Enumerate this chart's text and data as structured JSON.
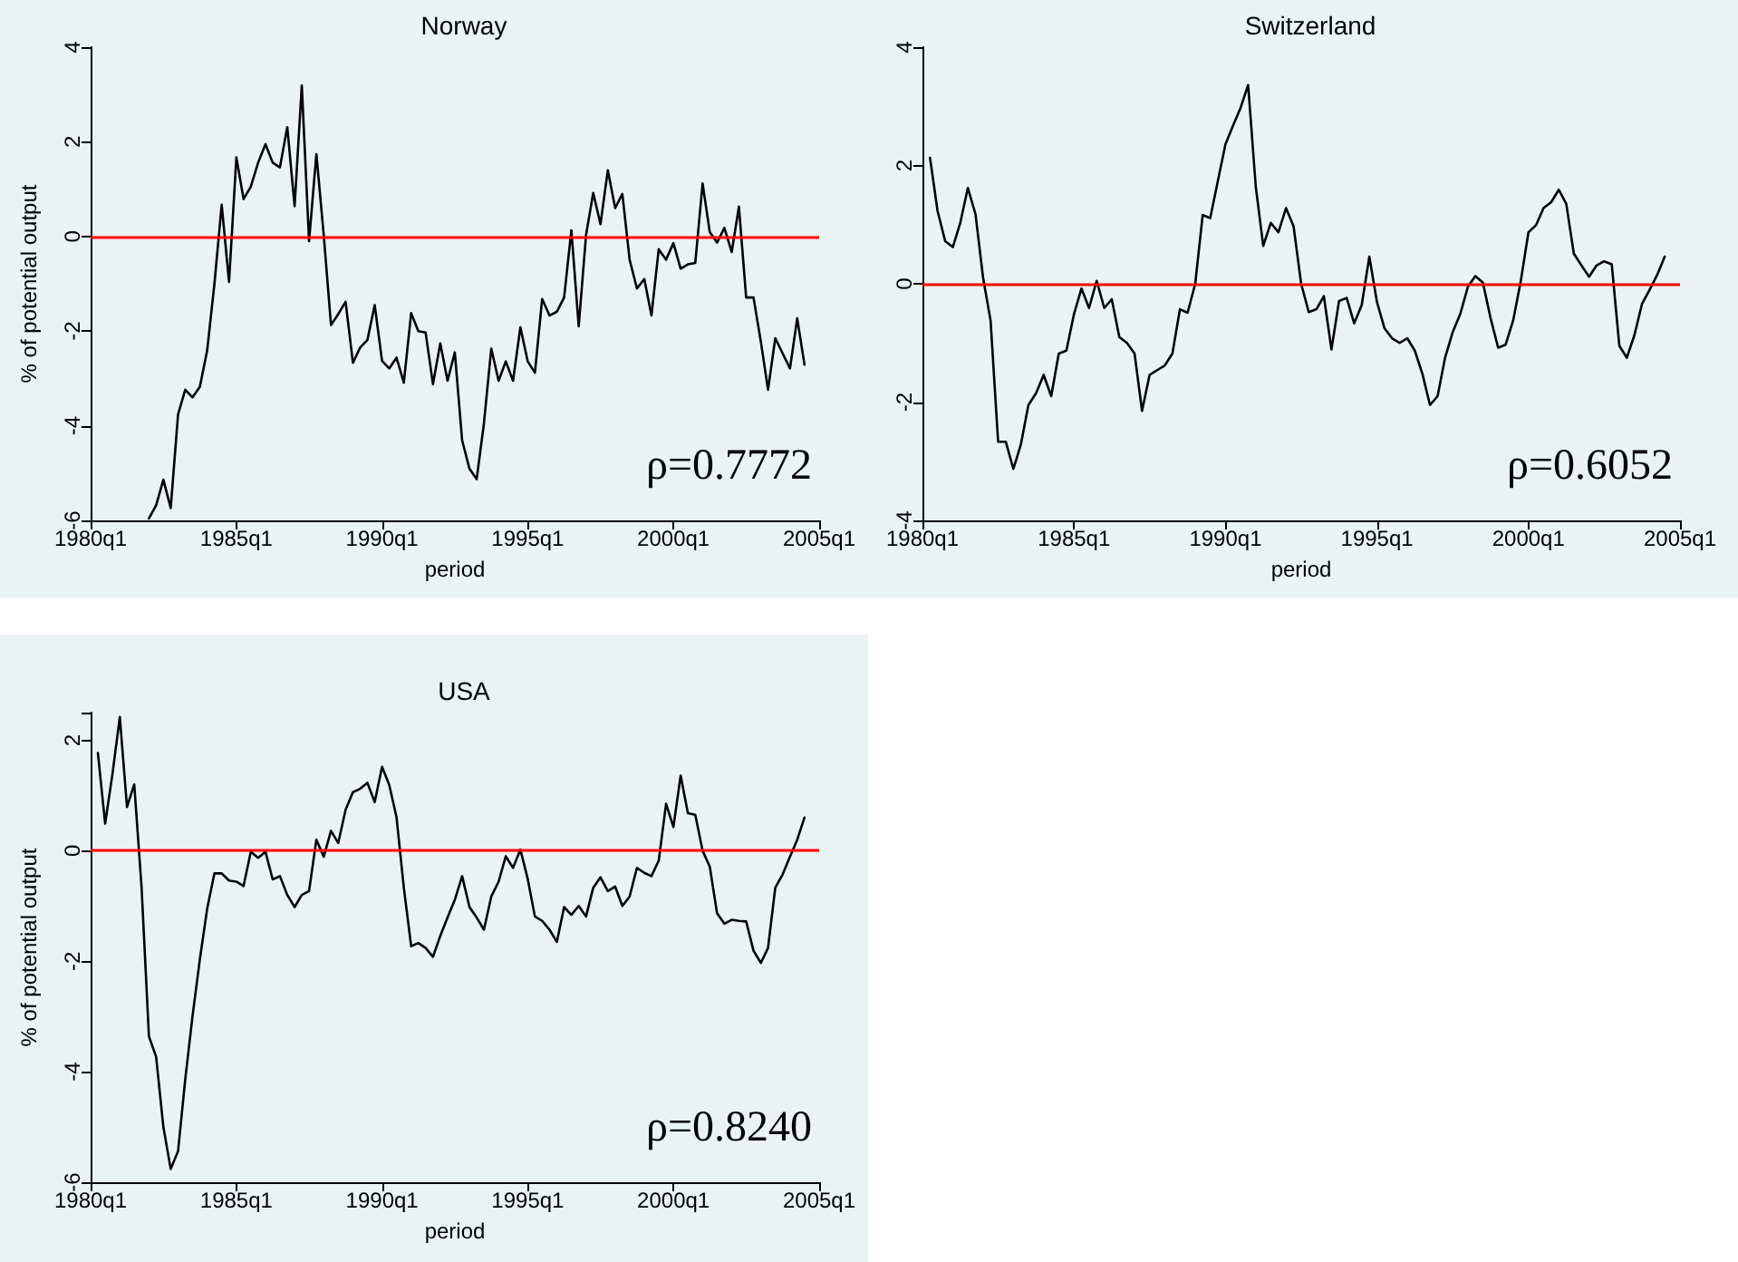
{
  "chart_data": [
    {
      "type": "line",
      "title": "Norway",
      "xlabel": "period",
      "ylabel": "% of potential output",
      "grid": false,
      "marker": "none",
      "line_style": "solid",
      "xlim": [
        "1980-01",
        "2005-01"
      ],
      "xticks": [
        {
          "value": "1980-01",
          "label": "1980q1"
        },
        {
          "value": "1985-01",
          "label": "1985q1"
        },
        {
          "value": "1990-01",
          "label": "1990q1"
        },
        {
          "value": "1995-01",
          "label": "1995q1"
        },
        {
          "value": "2000-01",
          "label": "2000q1"
        },
        {
          "value": "2005-01",
          "label": "2005q1"
        }
      ],
      "ylim": [
        -6,
        4
      ],
      "yticks": [
        -6,
        -4,
        -2,
        0,
        2,
        4
      ],
      "x": [
        "1982-01",
        "1982-04",
        "1982-07",
        "1982-10",
        "1983-01",
        "1983-04",
        "1983-07",
        "1983-10",
        "1984-01",
        "1984-04",
        "1984-07",
        "1984-10",
        "1985-01",
        "1985-04",
        "1985-07",
        "1985-10",
        "1986-01",
        "1986-04",
        "1986-07",
        "1986-10",
        "1987-01",
        "1987-04",
        "1987-07",
        "1987-10",
        "1988-01",
        "1988-04",
        "1988-07",
        "1988-10",
        "1989-01",
        "1989-04",
        "1989-07",
        "1989-10",
        "1990-01",
        "1990-04",
        "1990-07",
        "1990-10",
        "1991-01",
        "1991-04",
        "1991-07",
        "1991-10",
        "1992-01",
        "1992-04",
        "1992-07",
        "1992-10",
        "1993-01",
        "1993-04",
        "1993-07",
        "1993-10",
        "1994-01",
        "1994-04",
        "1994-07",
        "1994-10",
        "1995-01",
        "1995-04",
        "1995-07",
        "1995-10",
        "1996-01",
        "1996-04",
        "1996-07",
        "1996-10",
        "1997-01",
        "1997-04",
        "1997-07",
        "1997-10",
        "1998-01",
        "1998-04",
        "1998-07",
        "1998-10",
        "1999-01",
        "1999-04",
        "1999-07",
        "1999-10",
        "2000-01",
        "2000-04",
        "2000-07",
        "2000-10",
        "2001-01",
        "2001-04",
        "2001-07",
        "2001-10",
        "2002-01",
        "2002-04",
        "2002-07",
        "2002-10",
        "2003-01",
        "2003-04",
        "2003-07",
        "2003-10",
        "2004-01",
        "2004-04",
        "2004-07"
      ],
      "series": [
        {
          "color": "#000000",
          "values": [
            -5.96,
            -5.68,
            -5.14,
            -5.74,
            -3.76,
            -3.24,
            -3.4,
            -3.18,
            -2.41,
            -1.0,
            0.67,
            -0.96,
            1.67,
            0.79,
            1.05,
            1.56,
            1.95,
            1.56,
            1.46,
            2.31,
            0.64,
            3.19,
            -0.1,
            1.74,
            0.03,
            -1.87,
            -1.64,
            -1.38,
            -2.67,
            -2.35,
            -2.19,
            -1.45,
            -2.63,
            -2.79,
            -2.56,
            -3.09,
            -1.62,
            -2.0,
            -2.03,
            -3.12,
            -2.26,
            -3.05,
            -2.45,
            -4.31,
            -4.91,
            -5.13,
            -3.95,
            -2.37,
            -3.05,
            -2.64,
            -3.05,
            -1.92,
            -2.64,
            -2.88,
            -1.32,
            -1.67,
            -1.59,
            -1.29,
            0.13,
            -1.9,
            0.03,
            0.92,
            0.26,
            1.4,
            0.6,
            0.9,
            -0.49,
            -1.1,
            -0.9,
            -1.67,
            -0.27,
            -0.49,
            -0.14,
            -0.68,
            -0.59,
            -0.56,
            1.12,
            0.09,
            -0.13,
            0.18,
            -0.33,
            0.63,
            -1.29,
            -1.29,
            -2.22,
            -3.24,
            -2.15,
            -2.47,
            -2.79,
            -1.73,
            -2.71
          ]
        }
      ],
      "ref_lines": [
        {
          "axis": "y",
          "value": 0,
          "color": "#ff0000"
        }
      ],
      "annotations": [
        "ρ=0.7772"
      ]
    },
    {
      "type": "line",
      "title": "Switzerland",
      "xlabel": "period",
      "grid": false,
      "marker": "none",
      "line_style": "solid",
      "xlim": [
        "1980-01",
        "2005-01"
      ],
      "xticks": [
        {
          "value": "1980-01",
          "label": "1980q1"
        },
        {
          "value": "1985-01",
          "label": "1985q1"
        },
        {
          "value": "1990-01",
          "label": "1990q1"
        },
        {
          "value": "1995-01",
          "label": "1995q1"
        },
        {
          "value": "2000-01",
          "label": "2000q1"
        },
        {
          "value": "2005-01",
          "label": "2005q1"
        }
      ],
      "ylim": [
        -4,
        4
      ],
      "yticks": [
        -4,
        -2,
        0,
        2,
        4
      ],
      "x": [
        "1980-04",
        "1980-07",
        "1980-10",
        "1981-01",
        "1981-04",
        "1981-07",
        "1981-10",
        "1982-01",
        "1982-04",
        "1982-07",
        "1982-10",
        "1983-01",
        "1983-04",
        "1983-07",
        "1983-10",
        "1984-01",
        "1984-04",
        "1984-07",
        "1984-10",
        "1985-01",
        "1985-04",
        "1985-07",
        "1985-10",
        "1986-01",
        "1986-04",
        "1986-07",
        "1986-10",
        "1987-01",
        "1987-04",
        "1987-07",
        "1987-10",
        "1988-01",
        "1988-04",
        "1988-07",
        "1988-10",
        "1989-01",
        "1989-04",
        "1989-07",
        "1989-10",
        "1990-01",
        "1990-04",
        "1990-07",
        "1990-10",
        "1991-01",
        "1991-04",
        "1991-07",
        "1991-10",
        "1992-01",
        "1992-04",
        "1992-07",
        "1992-10",
        "1993-01",
        "1993-04",
        "1993-07",
        "1993-10",
        "1994-01",
        "1994-04",
        "1994-07",
        "1994-10",
        "1995-01",
        "1995-04",
        "1995-07",
        "1995-10",
        "1996-01",
        "1996-04",
        "1996-07",
        "1996-10",
        "1997-01",
        "1997-04",
        "1997-07",
        "1997-10",
        "1998-01",
        "1998-04",
        "1998-07",
        "1998-10",
        "1999-01",
        "1999-04",
        "1999-07",
        "1999-10",
        "2000-01",
        "2000-04",
        "2000-07",
        "2000-10",
        "2001-01",
        "2001-04",
        "2001-07",
        "2001-10",
        "2002-01",
        "2002-04",
        "2002-07",
        "2002-10",
        "2003-01",
        "2003-04",
        "2003-07",
        "2003-10",
        "2004-01",
        "2004-04",
        "2004-07"
      ],
      "series": [
        {
          "color": "#000000",
          "values": [
            2.13,
            1.23,
            0.72,
            0.62,
            1.03,
            1.62,
            1.18,
            0.1,
            -0.62,
            -2.67,
            -2.67,
            -3.13,
            -2.72,
            -2.05,
            -1.85,
            -1.54,
            -1.9,
            -1.18,
            -1.13,
            -0.51,
            -0.08,
            -0.41,
            0.05,
            -0.41,
            -0.26,
            -0.9,
            -1.0,
            -1.18,
            -2.15,
            -1.54,
            -1.46,
            -1.38,
            -1.18,
            -0.43,
            -0.49,
            0.0,
            1.16,
            1.11,
            1.74,
            2.36,
            2.67,
            2.97,
            3.36,
            1.64,
            0.64,
            1.03,
            0.87,
            1.28,
            0.97,
            0.0,
            -0.48,
            -0.43,
            -0.21,
            -1.11,
            -0.29,
            -0.24,
            -0.67,
            -0.36,
            0.46,
            -0.31,
            -0.75,
            -0.92,
            -1.0,
            -0.92,
            -1.13,
            -1.52,
            -2.05,
            -1.9,
            -1.25,
            -0.82,
            -0.51,
            -0.05,
            0.13,
            0.02,
            -0.58,
            -1.08,
            -1.03,
            -0.62,
            0.05,
            0.87,
            0.99,
            1.28,
            1.38,
            1.59,
            1.35,
            0.51,
            0.31,
            0.12,
            0.31,
            0.38,
            0.33,
            -1.05,
            -1.25,
            -0.87,
            -0.34,
            -0.1,
            0.15,
            0.46
          ]
        }
      ],
      "ref_lines": [
        {
          "axis": "y",
          "value": 0,
          "color": "#ff0000"
        }
      ],
      "annotations": [
        "ρ=0.6052"
      ]
    },
    {
      "type": "line",
      "title": "USA",
      "xlabel": "period",
      "ylabel": "% of potential output",
      "grid": false,
      "marker": "none",
      "line_style": "solid",
      "xlim": [
        "1980-01",
        "2005-01"
      ],
      "xticks": [
        {
          "value": "1980-01",
          "label": "1980q1"
        },
        {
          "value": "1985-01",
          "label": "1985q1"
        },
        {
          "value": "1990-01",
          "label": "1990q1"
        },
        {
          "value": "1995-01",
          "label": "1995q1"
        },
        {
          "value": "2000-01",
          "label": "2000q1"
        },
        {
          "value": "2005-01",
          "label": "2005q1"
        }
      ],
      "ylim": [
        -6,
        2.5
      ],
      "yticks": [
        -6,
        -4,
        -2,
        0,
        2
      ],
      "x": [
        "1980-04",
        "1980-07",
        "1980-10",
        "1981-01",
        "1981-04",
        "1981-07",
        "1981-10",
        "1982-01",
        "1982-04",
        "1982-07",
        "1982-10",
        "1983-01",
        "1983-04",
        "1983-07",
        "1983-10",
        "1984-01",
        "1984-04",
        "1984-07",
        "1984-10",
        "1985-01",
        "1985-04",
        "1985-07",
        "1985-10",
        "1986-01",
        "1986-04",
        "1986-07",
        "1986-10",
        "1987-01",
        "1987-04",
        "1987-07",
        "1987-10",
        "1988-01",
        "1988-04",
        "1988-07",
        "1988-10",
        "1989-01",
        "1989-04",
        "1989-07",
        "1989-10",
        "1990-01",
        "1990-04",
        "1990-07",
        "1990-10",
        "1991-01",
        "1991-04",
        "1991-07",
        "1991-10",
        "1992-01",
        "1992-04",
        "1992-07",
        "1992-10",
        "1993-01",
        "1993-04",
        "1993-07",
        "1993-10",
        "1994-01",
        "1994-04",
        "1994-07",
        "1994-10",
        "1995-01",
        "1995-04",
        "1995-07",
        "1995-10",
        "1996-01",
        "1996-04",
        "1996-07",
        "1996-10",
        "1997-01",
        "1997-04",
        "1997-07",
        "1997-10",
        "1998-01",
        "1998-04",
        "1998-07",
        "1998-10",
        "1999-01",
        "1999-04",
        "1999-07",
        "1999-10",
        "2000-01",
        "2000-04",
        "2000-07",
        "2000-10",
        "2001-01",
        "2001-04",
        "2001-07",
        "2001-10",
        "2002-01",
        "2002-04",
        "2002-07",
        "2002-10",
        "2003-01",
        "2003-04",
        "2003-07",
        "2003-10",
        "2004-01",
        "2004-04",
        "2004-07"
      ],
      "series": [
        {
          "color": "#000000",
          "values": [
            1.77,
            0.49,
            1.39,
            2.42,
            0.79,
            1.2,
            -0.67,
            -3.36,
            -3.73,
            -5.0,
            -5.76,
            -5.44,
            -4.14,
            -3.0,
            -1.97,
            -1.05,
            -0.41,
            -0.41,
            -0.54,
            -0.56,
            -0.64,
            -0.02,
            -0.13,
            -0.02,
            -0.52,
            -0.46,
            -0.8,
            -1.02,
            -0.8,
            -0.73,
            0.2,
            -0.11,
            0.36,
            0.14,
            0.74,
            1.06,
            1.12,
            1.23,
            0.88,
            1.52,
            1.19,
            0.61,
            -0.67,
            -1.73,
            -1.67,
            -1.76,
            -1.92,
            -1.54,
            -1.21,
            -0.89,
            -0.46,
            -1.02,
            -1.21,
            -1.43,
            -0.83,
            -0.56,
            -0.1,
            -0.31,
            0.02,
            -0.51,
            -1.19,
            -1.27,
            -1.43,
            -1.65,
            -1.02,
            -1.16,
            -1.0,
            -1.19,
            -0.67,
            -0.48,
            -0.73,
            -0.65,
            -1.0,
            -0.83,
            -0.31,
            -0.4,
            -0.46,
            -0.18,
            0.85,
            0.43,
            1.36,
            0.68,
            0.65,
            0.0,
            -0.29,
            -1.13,
            -1.32,
            -1.25,
            -1.27,
            -1.28,
            -1.81,
            -2.03,
            -1.76,
            -0.67,
            -0.43,
            -0.11,
            0.2,
            0.6
          ]
        }
      ],
      "ref_lines": [
        {
          "axis": "y",
          "value": 0,
          "color": "#ff0000"
        }
      ],
      "annotations": [
        "ρ=0.8240"
      ]
    }
  ]
}
